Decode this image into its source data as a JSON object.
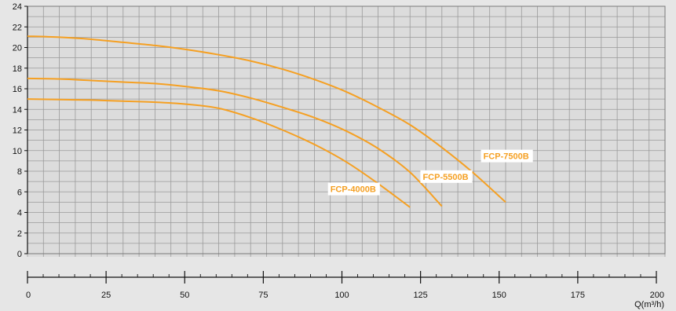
{
  "chart_data": {
    "type": "line",
    "title": "",
    "xlabel": "Q(m³/h)",
    "ylabel": "",
    "xlim": [
      0,
      200
    ],
    "ylim": [
      0,
      24
    ],
    "x_ticks": [
      0,
      25,
      50,
      75,
      100,
      125,
      150,
      175,
      200
    ],
    "y_ticks": [
      0,
      2,
      4,
      6,
      8,
      10,
      12,
      14,
      16,
      18,
      20,
      22,
      24
    ],
    "grid": true,
    "line_color": "#f5a023",
    "series": [
      {
        "name": "FCP-4000B",
        "points": [
          [
            0,
            15.0
          ],
          [
            10,
            14.95
          ],
          [
            20,
            14.9
          ],
          [
            30,
            14.8
          ],
          [
            40,
            14.7
          ],
          [
            50,
            14.5
          ],
          [
            60,
            14.1
          ],
          [
            70,
            13.2
          ],
          [
            80,
            12.0
          ],
          [
            90,
            10.6
          ],
          [
            100,
            8.9
          ],
          [
            110,
            6.8
          ],
          [
            120,
            4.5
          ]
        ]
      },
      {
        "name": "FCP-5500B",
        "points": [
          [
            0,
            17.0
          ],
          [
            10,
            16.95
          ],
          [
            20,
            16.8
          ],
          [
            30,
            16.65
          ],
          [
            40,
            16.5
          ],
          [
            50,
            16.2
          ],
          [
            60,
            15.8
          ],
          [
            70,
            15.1
          ],
          [
            80,
            14.2
          ],
          [
            90,
            13.2
          ],
          [
            100,
            11.9
          ],
          [
            110,
            10.2
          ],
          [
            120,
            7.9
          ],
          [
            130,
            4.6
          ]
        ]
      },
      {
        "name": "FCP-7500B",
        "points": [
          [
            0,
            21.1
          ],
          [
            10,
            21.0
          ],
          [
            20,
            20.8
          ],
          [
            30,
            20.5
          ],
          [
            40,
            20.2
          ],
          [
            50,
            19.8
          ],
          [
            60,
            19.3
          ],
          [
            70,
            18.7
          ],
          [
            80,
            17.9
          ],
          [
            90,
            16.9
          ],
          [
            100,
            15.7
          ],
          [
            110,
            14.2
          ],
          [
            120,
            12.5
          ],
          [
            130,
            10.3
          ],
          [
            140,
            7.8
          ],
          [
            150,
            5.0
          ]
        ]
      }
    ],
    "annotations": [
      {
        "text": "FCP-4000B",
        "series": "FCP-4000B",
        "x": 95,
        "y": 6.2
      },
      {
        "text": "FCP-5500B",
        "series": "FCP-5500B",
        "x": 124,
        "y": 7.4
      },
      {
        "text": "FCP-7500B",
        "series": "FCP-7500B",
        "x": 143,
        "y": 9.4
      }
    ]
  }
}
